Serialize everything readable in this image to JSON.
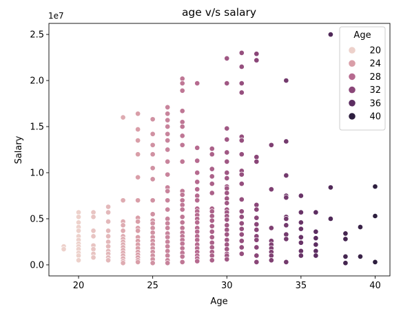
{
  "chart_data": {
    "type": "scatter",
    "title": "age v/s salary",
    "xlabel": "Age",
    "ylabel": "Salary",
    "y_offset_label": "1e7",
    "xlim": [
      18.0,
      41.0
    ],
    "ylim": [
      -0.12,
      2.62
    ],
    "y_multiplier": 10000000,
    "x_ticks": [
      20,
      25,
      30,
      35,
      40
    ],
    "y_ticks": [
      0.0,
      0.5,
      1.0,
      1.5,
      2.0,
      2.5
    ],
    "y_tick_labels": [
      "0.0",
      "0.5",
      "1.0",
      "1.5",
      "2.0",
      "2.5"
    ],
    "grid": false,
    "legend": {
      "title": "Age",
      "placement": "top-right",
      "entries": [
        {
          "label": "20",
          "color": "#edd1cb"
        },
        {
          "label": "24",
          "color": "#d99ea8"
        },
        {
          "label": "28",
          "color": "#b66a8f"
        },
        {
          "label": "32",
          "color": "#8a4678"
        },
        {
          "label": "36",
          "color": "#5c2d61"
        },
        {
          "label": "40",
          "color": "#2d1e3e"
        }
      ]
    },
    "hue": {
      "min": 19,
      "max": 40,
      "colors": [
        "#edd1cb",
        "#d99ea8",
        "#b66a8f",
        "#8a4678",
        "#5c2d61",
        "#2d1e3e"
      ],
      "stops": [
        20,
        24,
        28,
        32,
        36,
        40
      ]
    },
    "points_by_age": [
      {
        "age": 19,
        "salaries_1e7": [
          0.2,
          0.17
        ]
      },
      {
        "age": 20,
        "salaries_1e7": [
          0.57,
          0.52,
          0.46,
          0.41,
          0.37,
          0.31,
          0.27,
          0.23,
          0.2,
          0.17,
          0.13,
          0.1,
          0.05
        ]
      },
      {
        "age": 21,
        "salaries_1e7": [
          0.57,
          0.52,
          0.37,
          0.31,
          0.21,
          0.17,
          0.12,
          0.08
        ]
      },
      {
        "age": 22,
        "salaries_1e7": [
          0.63,
          0.57,
          0.47,
          0.37,
          0.31,
          0.25,
          0.2,
          0.15,
          0.12,
          0.08,
          0.05
        ]
      },
      {
        "age": 23,
        "salaries_1e7": [
          1.6,
          0.7,
          0.47,
          0.43,
          0.37,
          0.31,
          0.28,
          0.25,
          0.22,
          0.19,
          0.16,
          0.13,
          0.1,
          0.07,
          0.04,
          0.02
        ]
      },
      {
        "age": 24,
        "salaries_1e7": [
          1.64,
          1.47,
          1.35,
          1.2,
          0.95,
          0.7,
          0.51,
          0.47,
          0.4,
          0.37,
          0.3,
          0.26,
          0.22,
          0.18,
          0.14,
          0.11,
          0.08,
          0.05,
          0.03
        ]
      },
      {
        "age": 25,
        "salaries_1e7": [
          1.58,
          1.42,
          1.3,
          1.2,
          1.05,
          0.93,
          0.7,
          0.55,
          0.48,
          0.45,
          0.4,
          0.35,
          0.3,
          0.26,
          0.22,
          0.18,
          0.14,
          0.1,
          0.06,
          0.02
        ]
      },
      {
        "age": 26,
        "salaries_1e7": [
          1.71,
          1.64,
          1.57,
          1.5,
          1.42,
          1.35,
          1.25,
          1.12,
          0.98,
          0.84,
          0.8,
          0.7,
          0.6,
          0.5,
          0.45,
          0.4,
          0.34,
          0.3,
          0.25,
          0.2,
          0.15,
          0.1,
          0.05,
          0.02
        ]
      },
      {
        "age": 27,
        "salaries_1e7": [
          2.02,
          1.97,
          1.89,
          1.67,
          1.55,
          1.5,
          1.4,
          1.3,
          1.12,
          0.8,
          0.76,
          0.7,
          0.65,
          0.6,
          0.52,
          0.46,
          0.4,
          0.35,
          0.31,
          0.27,
          0.23,
          0.18,
          0.13,
          0.09,
          0.03
        ]
      },
      {
        "age": 28,
        "salaries_1e7": [
          1.97,
          1.27,
          1.13,
          1.0,
          0.9,
          0.82,
          0.75,
          0.7,
          0.61,
          0.58,
          0.54,
          0.5,
          0.46,
          0.4,
          0.36,
          0.31,
          0.27,
          0.22,
          0.18,
          0.14,
          0.1,
          0.07,
          0.04
        ]
      },
      {
        "age": 29,
        "salaries_1e7": [
          1.26,
          1.2,
          1.04,
          0.96,
          0.88,
          0.78,
          0.61,
          0.58,
          0.53,
          0.48,
          0.42,
          0.36,
          0.3,
          0.24,
          0.19,
          0.14,
          0.1,
          0.05
        ]
      },
      {
        "age": 30,
        "salaries_1e7": [
          2.24,
          1.97,
          1.48,
          1.36,
          1.22,
          1.12,
          1.0,
          0.94,
          0.85,
          0.83,
          0.78,
          0.72,
          0.67,
          0.6,
          0.57,
          0.53,
          0.49,
          0.43,
          0.38,
          0.33,
          0.27,
          0.22,
          0.17,
          0.12,
          0.1,
          0.06
        ]
      },
      {
        "age": 31,
        "salaries_1e7": [
          2.3,
          2.15,
          1.97,
          1.87,
          1.39,
          1.35,
          1.2,
          1.02,
          0.98,
          0.88,
          0.71,
          0.58,
          0.52,
          0.45,
          0.39,
          0.33,
          0.26,
          0.19,
          0.12
        ]
      },
      {
        "age": 32,
        "salaries_1e7": [
          2.29,
          2.22,
          1.17,
          1.12,
          0.65,
          0.6,
          0.51,
          0.44,
          0.38,
          0.31,
          0.27,
          0.19,
          0.1,
          0.03
        ]
      },
      {
        "age": 33,
        "salaries_1e7": [
          1.3,
          0.82,
          0.4,
          0.26,
          0.22,
          0.18,
          0.14,
          0.1,
          0.05
        ]
      },
      {
        "age": 34,
        "salaries_1e7": [
          2.0,
          1.34,
          0.97,
          0.75,
          0.73,
          0.52,
          0.5,
          0.43,
          0.33,
          0.28,
          0.03
        ]
      },
      {
        "age": 35,
        "salaries_1e7": [
          0.75,
          0.57,
          0.46,
          0.39,
          0.3,
          0.24,
          0.15,
          0.1
        ]
      },
      {
        "age": 36,
        "salaries_1e7": [
          0.57,
          0.36,
          0.29,
          0.22,
          0.15,
          0.1
        ]
      },
      {
        "age": 37,
        "salaries_1e7": [
          2.5,
          0.84,
          0.5
        ]
      },
      {
        "age": 38,
        "salaries_1e7": [
          0.34,
          0.28,
          0.09,
          0.02
        ]
      },
      {
        "age": 39,
        "salaries_1e7": [
          0.41,
          0.09
        ]
      },
      {
        "age": 40,
        "salaries_1e7": [
          0.85,
          0.53,
          0.03
        ]
      }
    ]
  }
}
